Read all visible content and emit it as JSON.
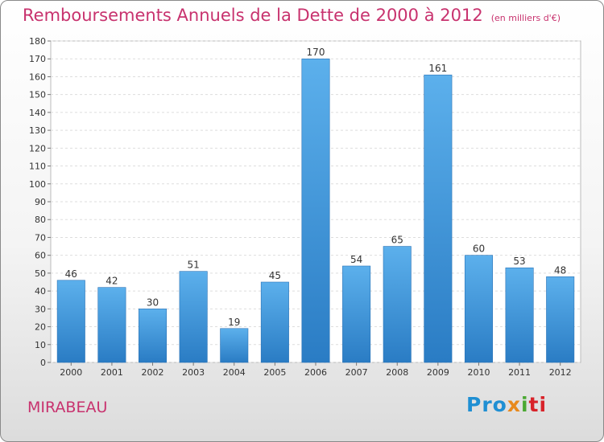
{
  "chart_data": {
    "type": "bar",
    "title": "Remboursements Annuels de la Dette de 2000 à 2012",
    "subtitle": "(en milliers d'€)",
    "categories": [
      "2000",
      "2001",
      "2002",
      "2003",
      "2004",
      "2005",
      "2006",
      "2007",
      "2008",
      "2009",
      "2010",
      "2011",
      "2012"
    ],
    "values": [
      46,
      42,
      30,
      51,
      19,
      45,
      170,
      54,
      65,
      161,
      60,
      53,
      48
    ],
    "ylim": [
      0,
      180
    ],
    "yticks": [
      0,
      10,
      20,
      30,
      40,
      50,
      60,
      70,
      80,
      90,
      100,
      110,
      120,
      130,
      140,
      150,
      160,
      170,
      180
    ],
    "grid": true,
    "bar_color": "#3a8fd6"
  },
  "location": "MIRABEAU",
  "brand": {
    "p1": "Pro",
    "p2": "x",
    "p3": "i",
    "p4": "ti"
  }
}
